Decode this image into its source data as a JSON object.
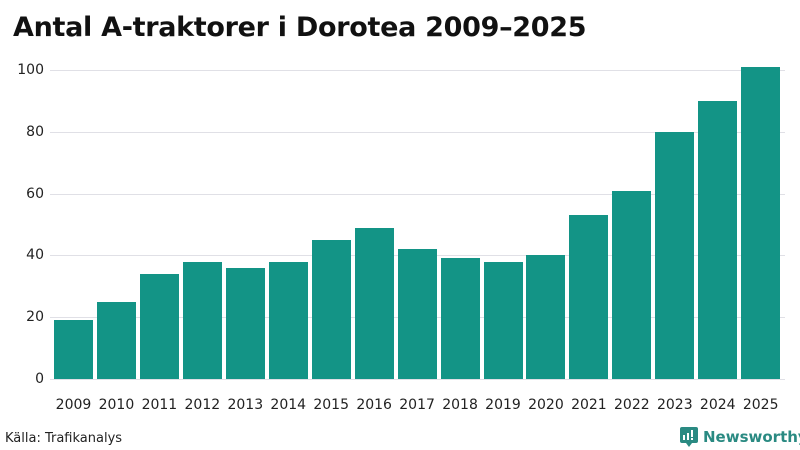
{
  "title": "Antal A-traktorer i Dorotea 2009–2025",
  "source": "Källa: Trafikanalys",
  "brand": "Newsworthy",
  "colors": {
    "bar": "#139486",
    "grid": "#e0e0e6",
    "brand": "#2a8a82"
  },
  "chart_data": {
    "type": "bar",
    "title": "Antal A-traktorer i Dorotea 2009–2025",
    "xlabel": "",
    "ylabel": "",
    "categories": [
      "2009",
      "2010",
      "2011",
      "2012",
      "2013",
      "2014",
      "2015",
      "2016",
      "2017",
      "2018",
      "2019",
      "2020",
      "2021",
      "2022",
      "2023",
      "2024",
      "2025"
    ],
    "values": [
      19,
      25,
      34,
      38,
      36,
      38,
      45,
      49,
      42,
      39,
      38,
      40,
      53,
      61,
      80,
      90,
      101
    ],
    "ylim": [
      0,
      100
    ],
    "yticks": [
      0,
      20,
      40,
      60,
      80,
      100
    ],
    "grid": true,
    "legend": null
  }
}
